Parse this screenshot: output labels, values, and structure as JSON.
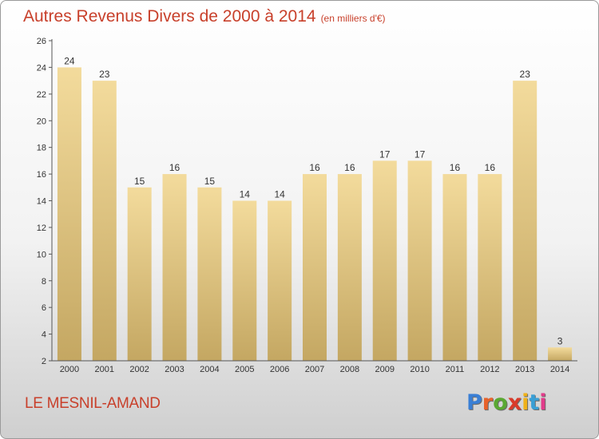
{
  "title": "Autres Revenus Divers de 2000 à 2014",
  "title_unit": "(en milliers d'€)",
  "commune": "LE MESNIL-AMAND",
  "logo": {
    "text": "Proxiti",
    "letter_colors": [
      "#3a7fd5",
      "#e8622a",
      "#5aa832",
      "#d93a2a",
      "#f0b21a",
      "#3a9fd5",
      "#e23b8a"
    ]
  },
  "colors": {
    "accent": "#c8402b",
    "bar_light": "#f3db9c",
    "bar_dark": "#c4a762"
  },
  "chart_data": {
    "type": "bar",
    "categories": [
      "2000",
      "2001",
      "2002",
      "2003",
      "2004",
      "2005",
      "2006",
      "2007",
      "2008",
      "2009",
      "2010",
      "2011",
      "2012",
      "2013",
      "2014"
    ],
    "values": [
      24,
      23,
      15,
      16,
      15,
      14,
      14,
      16,
      16,
      17,
      17,
      16,
      16,
      23,
      3
    ],
    "ylim": [
      2,
      26
    ],
    "yticks": [
      2,
      4,
      6,
      8,
      10,
      12,
      14,
      16,
      18,
      20,
      22,
      24,
      26
    ],
    "grid": false,
    "legend": "none"
  }
}
